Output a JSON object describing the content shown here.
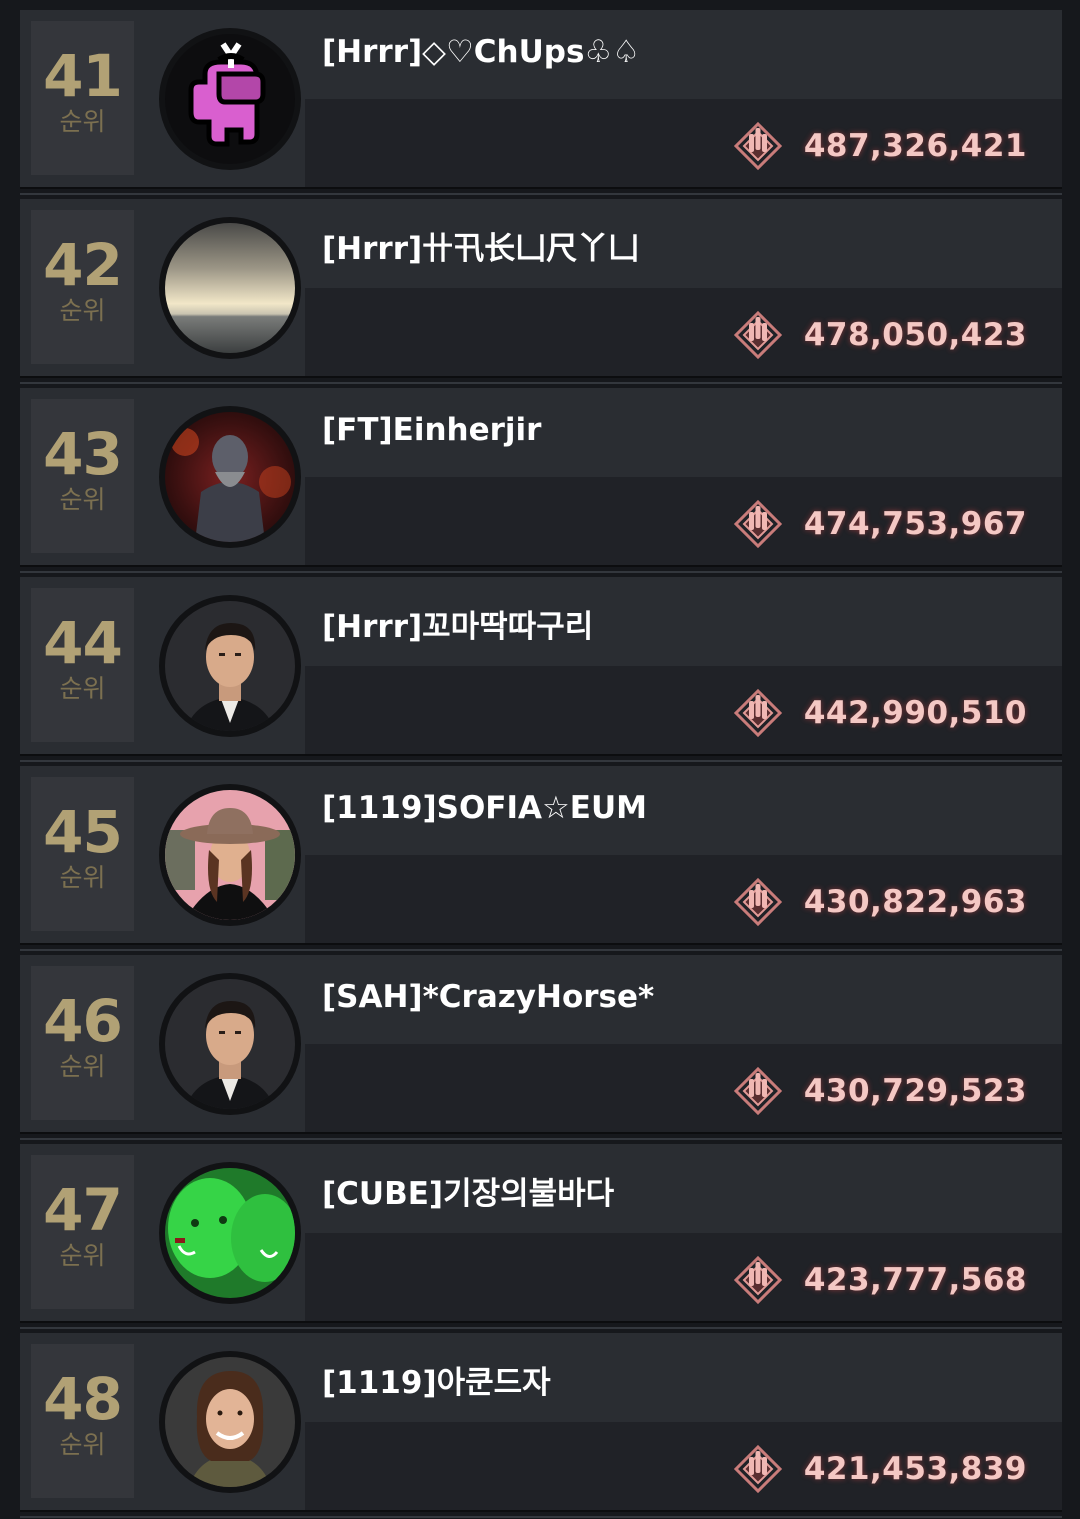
{
  "rank_suffix": "순위",
  "colors": {
    "rank_number": "#b1a175",
    "rank_label": "#7c7050",
    "score": "#f4c8c4",
    "row_bg": "#2a2d32"
  },
  "entries": [
    {
      "rank": "41",
      "name": "[Hrrr]◇♡ChUps♧♤",
      "score": "487,326,421",
      "avatar": "pink-crewmate-avatar"
    },
    {
      "rank": "42",
      "name": "[Hrrr]卄卂长凵尺丫凵",
      "score": "478,050,423",
      "avatar": "ocean-sky-avatar"
    },
    {
      "rank": "43",
      "name": "[FT]Einherjir",
      "score": "474,753,967",
      "avatar": "demon-warrior-avatar"
    },
    {
      "rank": "44",
      "name": "[Hrrr]꼬마딱따구리",
      "score": "442,990,510",
      "avatar": "man-in-suit-avatar"
    },
    {
      "rank": "45",
      "name": "[1119]SOFIA☆EUM",
      "score": "430,822,963",
      "avatar": "woman-with-hat-avatar"
    },
    {
      "rank": "46",
      "name": "[SAH]*CrazyHorse*",
      "score": "430,729,523",
      "avatar": "man-in-suit-avatar"
    },
    {
      "rank": "47",
      "name": "[CUBE]기장의불바다",
      "score": "423,777,568",
      "avatar": "green-aliens-avatar"
    },
    {
      "rank": "48",
      "name": "[1119]아쿤드자",
      "score": "421,453,839",
      "avatar": "smiling-woman-avatar"
    }
  ]
}
